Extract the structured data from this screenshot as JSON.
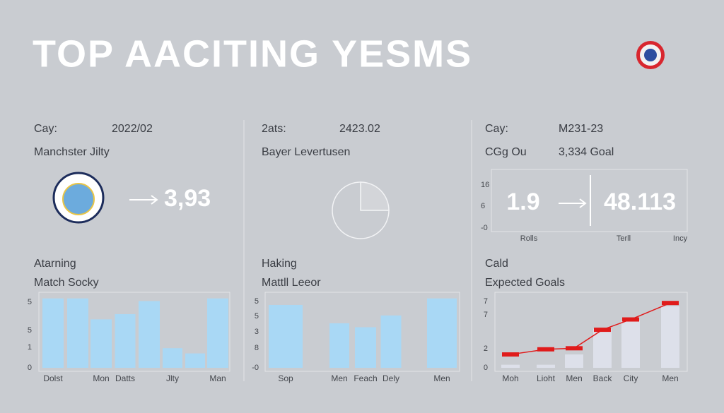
{
  "header": {
    "title": "TOP AACITING YESMS"
  },
  "panels": [
    {
      "label": "Cay:",
      "date": "2022/02",
      "team": "Manchster Jilty",
      "stat": "3,93",
      "section": "Atarning",
      "subtitle": "Match Socky",
      "chart": {
        "type": "bar",
        "axis_labels": [
          "5",
          "5",
          "1",
          "0"
        ],
        "ylim": [
          0,
          5.5
        ],
        "categories": [
          "Dolst",
          null,
          "Mon",
          "Datts",
          null,
          "Jlty",
          null,
          "Man"
        ],
        "values": [
          5.3,
          5.3,
          3.7,
          4.1,
          5.1,
          1.5,
          1.1,
          5.3
        ],
        "color": "#a9d8f5"
      }
    },
    {
      "label": "2ats:",
      "date": "2423.02",
      "team": "Bayer Levertusen",
      "pie": {
        "type": "pie",
        "values": [
          25,
          75
        ],
        "colors": [
          "#d3d5d9",
          "#c9ccd1"
        ]
      },
      "section": "Haking",
      "subtitle": "Mattll Leeor",
      "chart": {
        "type": "bar",
        "axis_labels": [
          "5",
          "5",
          "3",
          "8",
          "-0"
        ],
        "ylim": [
          0,
          5.5
        ],
        "categories": [
          "Sop",
          "Men",
          "Feach",
          "Dely",
          "Men"
        ],
        "values": [
          4.8,
          3.4,
          3.1,
          4.0,
          5.3
        ],
        "color": "#a9d8f5"
      }
    },
    {
      "label": "Cay:",
      "date": "M231-23",
      "team": "CGg Ou",
      "goal": "3,334 Goal",
      "box": {
        "axis_labels": [
          "16",
          "6",
          "-0"
        ],
        "left": "1.9",
        "right": "48.113",
        "captions": [
          "Rolls",
          "Terll",
          "Incy"
        ]
      },
      "section": "Cald",
      "subtitle": "Expected Goals",
      "chart": {
        "type": "line",
        "axis_labels": [
          "7",
          "7",
          "2",
          "0"
        ],
        "ylim": [
          0,
          7
        ],
        "categories": [
          "Moh",
          "Lioht",
          "Men",
          "Back",
          "City",
          "Men"
        ],
        "series": [
          {
            "color": "#dde0ea",
            "values": [
              0.3,
              0.3,
              1.3,
              3.8,
              4.6,
              6.0
            ]
          },
          {
            "color": "#e01b1b",
            "values": [
              1.3,
              1.8,
              1.9,
              3.7,
              4.7,
              6.3
            ]
          }
        ]
      }
    }
  ]
}
